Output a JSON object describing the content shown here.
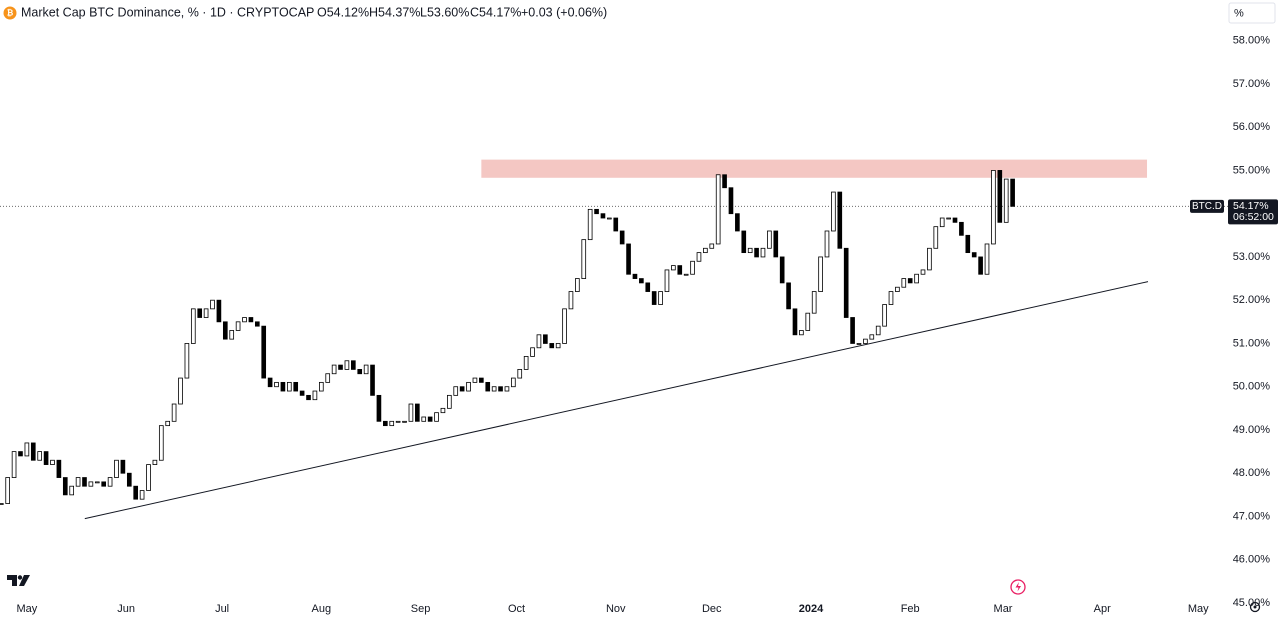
{
  "header": {
    "title": "Market Cap BTC Dominance, % · 1D · CRYPTOCAP",
    "open": "O54.12%",
    "high": "H54.37%",
    "low": "L53.60%",
    "close": "C54.17%",
    "change": "+0.03 (+0.06%)",
    "scale_button": "%"
  },
  "chart_data": {
    "type": "candlestick",
    "x": [
      -8,
      -6,
      -4,
      -2,
      0,
      2,
      4,
      6,
      8,
      10,
      12,
      14,
      16,
      18,
      20,
      22,
      24,
      26,
      28,
      30,
      32,
      34,
      36,
      38,
      40,
      42,
      44,
      46,
      48,
      50,
      52,
      54,
      56,
      58,
      60,
      62,
      64,
      66,
      68,
      70,
      72,
      74,
      76,
      78,
      80,
      82,
      84,
      86,
      88,
      90,
      92,
      94,
      96,
      98,
      100,
      102,
      104,
      106,
      108,
      110,
      112,
      114,
      116,
      118,
      120,
      122,
      124,
      126,
      128,
      130,
      132,
      134,
      136,
      138,
      140,
      142,
      144,
      146,
      148,
      150,
      152,
      154,
      156,
      158,
      160,
      162,
      164,
      166,
      168,
      170,
      172,
      174,
      176,
      178,
      180,
      182,
      184,
      186,
      188,
      190,
      192,
      194,
      196,
      198,
      200,
      202,
      204,
      206,
      208,
      210,
      212,
      214,
      216,
      218,
      220,
      222,
      224,
      226,
      228,
      230,
      232,
      234,
      236,
      238,
      240,
      242,
      244,
      246,
      248,
      250,
      252,
      254,
      256,
      258,
      260,
      262,
      264,
      266,
      268,
      270,
      272,
      274,
      276,
      278,
      280,
      282,
      284,
      286,
      288,
      290,
      292,
      294,
      296,
      298,
      300,
      302,
      304,
      306,
      308
    ],
    "series": [
      {
        "name": "BTC.D",
        "color": "#000000",
        "values": [
          47.3,
          47.9,
          48.5,
          48.4,
          48.7,
          48.3,
          48.5,
          48.2,
          48.3,
          47.9,
          47.5,
          47.7,
          47.9,
          47.7,
          47.8,
          47.8,
          47.7,
          47.9,
          48.3,
          48.0,
          47.7,
          47.4,
          47.6,
          48.2,
          48.3,
          49.1,
          49.2,
          49.6,
          50.2,
          51.0,
          51.8,
          51.6,
          51.8,
          52.0,
          51.5,
          51.1,
          51.3,
          51.5,
          51.6,
          51.5,
          51.4,
          50.2,
          50.0,
          50.1,
          49.9,
          50.1,
          49.9,
          49.8,
          49.7,
          49.9,
          50.1,
          50.3,
          50.5,
          50.4,
          50.6,
          50.4,
          50.3,
          50.5,
          49.8,
          49.2,
          49.1,
          49.2,
          49.2,
          49.2,
          49.6,
          49.2,
          49.3,
          49.2,
          49.4,
          49.5,
          49.8,
          50.0,
          49.9,
          50.1,
          50.2,
          50.1,
          49.9,
          50.0,
          49.9,
          50.0,
          50.2,
          50.4,
          50.7,
          50.9,
          51.2,
          51.0,
          50.9,
          51.0,
          51.8,
          52.2,
          52.5,
          53.4,
          54.1,
          54.0,
          53.9,
          53.9,
          53.6,
          53.3,
          52.6,
          52.5,
          52.4,
          52.2,
          51.9,
          52.2,
          52.7,
          52.8,
          52.6,
          52.6,
          52.9,
          53.1,
          53.2,
          53.3,
          54.9,
          54.6,
          54.0,
          53.6,
          53.1,
          53.2,
          53.0,
          53.2,
          53.6,
          53.0,
          52.4,
          51.8,
          51.2,
          51.3,
          51.7,
          52.2,
          53.0,
          53.6,
          54.5,
          53.2,
          51.6,
          51.0,
          51.0,
          51.1,
          51.2,
          51.4,
          51.9,
          52.2,
          52.3,
          52.5,
          52.4,
          52.6,
          52.7,
          53.2,
          53.7,
          53.9,
          53.9,
          53.8,
          53.5,
          53.1,
          53.0,
          52.6,
          53.3,
          55.0,
          53.8,
          54.8,
          54.17
        ]
      }
    ],
    "xlim": [
      -8.4,
      375.3
    ],
    "xticks": [
      {
        "value": 0,
        "label": "May"
      },
      {
        "value": 31,
        "label": "Jun"
      },
      {
        "value": 61,
        "label": "Jul"
      },
      {
        "value": 92,
        "label": "Aug"
      },
      {
        "value": 123,
        "label": "Sep"
      },
      {
        "value": 153,
        "label": "Oct"
      },
      {
        "value": 184,
        "label": "Nov"
      },
      {
        "value": 214,
        "label": "Dec"
      },
      {
        "value": 245,
        "label": "2024"
      },
      {
        "value": 276,
        "label": "Feb"
      },
      {
        "value": 305,
        "label": "Mar"
      },
      {
        "value": 336,
        "label": "Apr"
      },
      {
        "value": 366,
        "label": "May"
      }
    ],
    "ylim": [
      44.63,
      58.94
    ],
    "yticks": [
      {
        "value": 45,
        "label": "45.00%"
      },
      {
        "value": 46,
        "label": "46.00%"
      },
      {
        "value": 47,
        "label": "47.00%"
      },
      {
        "value": 48,
        "label": "48.00%"
      },
      {
        "value": 49,
        "label": "49.00%"
      },
      {
        "value": 50,
        "label": "50.00%"
      },
      {
        "value": 51,
        "label": "51.00%"
      },
      {
        "value": 52,
        "label": "52.00%"
      },
      {
        "value": 53,
        "label": "53.00%"
      },
      {
        "value": 54,
        "label": "54.00%"
      },
      {
        "value": 55,
        "label": "55.00%"
      },
      {
        "value": 56,
        "label": "56.00%"
      },
      {
        "value": 57,
        "label": "57.00%"
      },
      {
        "value": 58,
        "label": "58.00%"
      }
    ],
    "last_price": {
      "value": 54.17,
      "label": "54.17%",
      "symbol": "BTC.D",
      "countdown": "06:52:00"
    },
    "zone": {
      "x": [
        142,
        350
      ],
      "y": [
        54.83,
        55.25
      ],
      "color": "#f4c7c3"
    },
    "trendline": {
      "x": [
        18.1,
        350.3
      ],
      "y": [
        46.95,
        52.43
      ],
      "color": "#131722"
    }
  }
}
